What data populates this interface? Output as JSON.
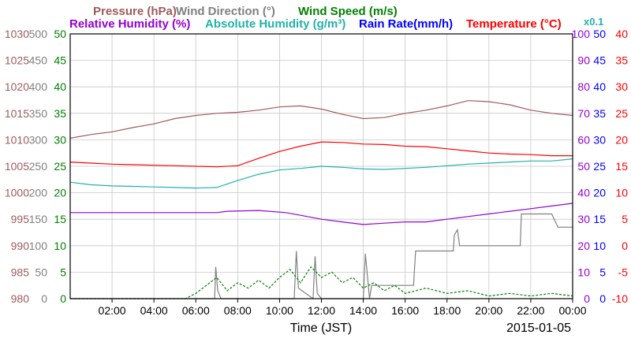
{
  "chart_data": {
    "type": "line",
    "date": "2015-01-05",
    "xlabel": "Time (JST)",
    "x_ticks": [
      "02:00",
      "04:00",
      "06:00",
      "08:00",
      "10:00",
      "12:00",
      "14:00",
      "16:00",
      "18:00",
      "20:00",
      "22:00",
      "00:00"
    ],
    "legend": {
      "row1": [
        {
          "text": "Pressure (hPa)",
          "color": "#a05a5a"
        },
        {
          "text": "Wind Direction (°)",
          "color": "#808080"
        },
        {
          "text": "Wind Speed (m/s)",
          "color": "#008000"
        }
      ],
      "row2": [
        {
          "text": "Relative Humidity (%)",
          "color": "#9400d3"
        },
        {
          "text": "Absolute Humidity (g/m³)",
          "color": "#20b2aa"
        },
        {
          "text": "Rain Rate(mm/h)",
          "color": "#0000ff"
        },
        {
          "text": "Temperature (°C)",
          "color": "#ff0000"
        }
      ],
      "scale_note": {
        "text": "x0.1",
        "color": "#20b2aa"
      }
    },
    "axes": {
      "pressure": {
        "ticks": [
          "980",
          "985",
          "990",
          "995",
          "1000",
          "1005",
          "1010",
          "1015",
          "1020",
          "1025",
          "1030"
        ],
        "range": [
          980,
          1030
        ],
        "color": "#a05a5a"
      },
      "wind_direction": {
        "ticks": [
          "0",
          "50",
          "100",
          "150",
          "200",
          "250",
          "300",
          "350",
          "400",
          "450",
          "500"
        ],
        "range": [
          0,
          500
        ],
        "color": "#808080"
      },
      "wind_speed": {
        "ticks": [
          "0",
          "5",
          "10",
          "15",
          "20",
          "25",
          "30",
          "35",
          "40",
          "45",
          "50"
        ],
        "range": [
          0,
          50
        ],
        "color": "#008000"
      },
      "relative_humidity": {
        "ticks": [
          "0",
          "10",
          "20",
          "30",
          "40",
          "50",
          "60",
          "70",
          "80",
          "90",
          "100"
        ],
        "range": [
          0,
          100
        ],
        "color": "#9400d3"
      },
      "rain_rate": {
        "ticks": [
          "0",
          "5",
          "10",
          "15",
          "20",
          "25",
          "30",
          "35",
          "40",
          "45",
          "50"
        ],
        "range": [
          0,
          50
        ],
        "color": "#0000ff"
      },
      "temperature": {
        "ticks": [
          "-10",
          "-5",
          "0",
          "5",
          "10",
          "15",
          "20",
          "25",
          "30",
          "35",
          "40"
        ],
        "range": [
          -10,
          40
        ],
        "color": "#ff0000"
      }
    },
    "series": [
      {
        "name": "Pressure (hPa)",
        "color": "#a05a5a",
        "axis": "pressure",
        "points": [
          [
            0,
            1010.3
          ],
          [
            1,
            1011
          ],
          [
            2,
            1011.5
          ],
          [
            3,
            1012.3
          ],
          [
            4,
            1013
          ],
          [
            5,
            1014
          ],
          [
            6,
            1014.6
          ],
          [
            7,
            1015
          ],
          [
            8,
            1015.2
          ],
          [
            9,
            1015.6
          ],
          [
            10,
            1016.2
          ],
          [
            11,
            1016.4
          ],
          [
            12,
            1015.8
          ],
          [
            13,
            1014.8
          ],
          [
            14,
            1014
          ],
          [
            15,
            1014.2
          ],
          [
            16,
            1015
          ],
          [
            17,
            1015.6
          ],
          [
            18,
            1016.4
          ],
          [
            19,
            1017.4
          ],
          [
            20,
            1017.2
          ],
          [
            21,
            1016.6
          ],
          [
            22,
            1015.6
          ],
          [
            23,
            1015
          ],
          [
            24,
            1014.6
          ]
        ]
      },
      {
        "name": "Temperature (°C)",
        "color": "#ff0000",
        "axis": "temperature",
        "points": [
          [
            0,
            15.8
          ],
          [
            1,
            15.6
          ],
          [
            2,
            15.4
          ],
          [
            3,
            15.3
          ],
          [
            4,
            15.2
          ],
          [
            5,
            15.1
          ],
          [
            6,
            15
          ],
          [
            7,
            14.9
          ],
          [
            8,
            15.1
          ],
          [
            9,
            16.5
          ],
          [
            10,
            17.8
          ],
          [
            11,
            18.8
          ],
          [
            12,
            19.6
          ],
          [
            13,
            19.5
          ],
          [
            14,
            19.2
          ],
          [
            15,
            19.1
          ],
          [
            16,
            18.8
          ],
          [
            17,
            18.7
          ],
          [
            18,
            18.3
          ],
          [
            19,
            17.9
          ],
          [
            20,
            17.5
          ],
          [
            21,
            17.3
          ],
          [
            22,
            17.2
          ],
          [
            23,
            17
          ],
          [
            24,
            17
          ]
        ]
      },
      {
        "name": "Absolute Humidity (g/m³)",
        "color": "#20b2aa",
        "axis": "rain_rate",
        "points": [
          [
            0,
            22
          ],
          [
            1,
            21.5
          ],
          [
            2,
            21.3
          ],
          [
            3,
            21.2
          ],
          [
            4,
            21.1
          ],
          [
            5,
            21
          ],
          [
            6,
            20.9
          ],
          [
            7,
            21
          ],
          [
            8,
            22.3
          ],
          [
            9,
            23.5
          ],
          [
            10,
            24.3
          ],
          [
            11,
            24.6
          ],
          [
            12,
            25
          ],
          [
            13,
            24.8
          ],
          [
            14,
            24.5
          ],
          [
            15,
            24.4
          ],
          [
            16,
            24.6
          ],
          [
            17,
            24.8
          ],
          [
            18,
            25.1
          ],
          [
            19,
            25.4
          ],
          [
            20,
            25.6
          ],
          [
            21,
            25.8
          ],
          [
            22,
            26
          ],
          [
            23,
            26
          ],
          [
            24,
            26.4
          ]
        ]
      },
      {
        "name": "Relative Humidity (%)",
        "color": "#9400d3",
        "axis": "relative_humidity",
        "points": [
          [
            0,
            32.5
          ],
          [
            3,
            32.5
          ],
          [
            6,
            32.5
          ],
          [
            7,
            32.5
          ],
          [
            7.5,
            33
          ],
          [
            9,
            33.3
          ],
          [
            10.3,
            32.5
          ],
          [
            11,
            31.5
          ],
          [
            12,
            30
          ],
          [
            13,
            29
          ],
          [
            14,
            28
          ],
          [
            15,
            28.5
          ],
          [
            16,
            29
          ],
          [
            17,
            29
          ],
          [
            18,
            30
          ],
          [
            19,
            31
          ],
          [
            20,
            32
          ],
          [
            21,
            33
          ],
          [
            22,
            34
          ],
          [
            23,
            35
          ],
          [
            24,
            36
          ]
        ]
      },
      {
        "name": "Wind Direction (°)",
        "color": "#808080",
        "axis": "wind_direction",
        "points": [
          [
            0,
            0
          ],
          [
            6.9,
            0
          ],
          [
            6.95,
            60
          ],
          [
            7.05,
            15
          ],
          [
            7.2,
            0
          ],
          [
            10.7,
            0
          ],
          [
            10.8,
            90
          ],
          [
            10.9,
            20
          ],
          [
            11.6,
            0
          ],
          [
            11.7,
            80
          ],
          [
            11.8,
            10
          ],
          [
            12,
            0
          ],
          [
            12.8,
            0
          ],
          [
            14,
            0
          ],
          [
            14.1,
            85
          ],
          [
            14.3,
            0
          ],
          [
            14.4,
            25
          ],
          [
            16.4,
            25
          ],
          [
            16.5,
            90
          ],
          [
            17.8,
            90
          ],
          [
            18.3,
            90
          ],
          [
            18.35,
            120
          ],
          [
            18.5,
            130
          ],
          [
            18.6,
            100
          ],
          [
            21.5,
            100
          ],
          [
            21.55,
            160
          ],
          [
            23,
            160
          ],
          [
            23.3,
            135
          ],
          [
            24,
            135
          ]
        ]
      },
      {
        "name": "Wind Speed (m/s)",
        "color": "#008000",
        "axis": "wind_speed",
        "points": [
          [
            0,
            0
          ],
          [
            5.5,
            0
          ],
          [
            6,
            1
          ],
          [
            6.5,
            2.5
          ],
          [
            7,
            4
          ],
          [
            7.5,
            1.5
          ],
          [
            8,
            3
          ],
          [
            8.5,
            2
          ],
          [
            9,
            3.5
          ],
          [
            9.5,
            2
          ],
          [
            10,
            4
          ],
          [
            10.5,
            5.5
          ],
          [
            11,
            3
          ],
          [
            11.5,
            6
          ],
          [
            12,
            4
          ],
          [
            12.5,
            5
          ],
          [
            13,
            3
          ],
          [
            13.5,
            4
          ],
          [
            14,
            2
          ],
          [
            14.5,
            3
          ],
          [
            15,
            1.5
          ],
          [
            15.5,
            2.5
          ],
          [
            16,
            1
          ],
          [
            17,
            2
          ],
          [
            18,
            1
          ],
          [
            19,
            1.5
          ],
          [
            20,
            0.5
          ],
          [
            21,
            1
          ],
          [
            22,
            0.5
          ],
          [
            23,
            1
          ],
          [
            24,
            0.5
          ]
        ]
      }
    ]
  }
}
